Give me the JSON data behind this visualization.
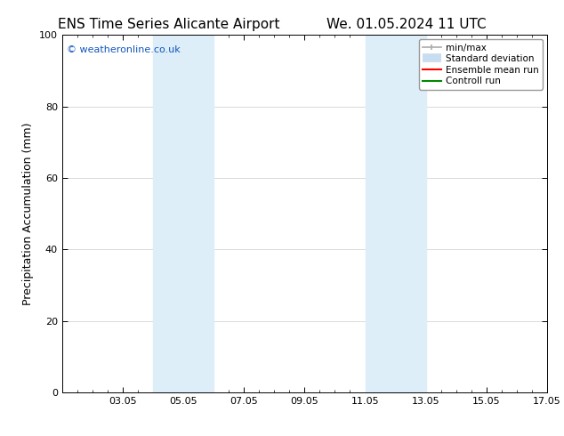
{
  "title_left": "ENS Time Series Alicante Airport",
  "title_right": "We. 01.05.2024 11 UTC",
  "ylabel": "Precipitation Accumulation (mm)",
  "ylim": [
    0,
    100
  ],
  "xlim": [
    1.05,
    17.05
  ],
  "xticks": [
    3.05,
    5.05,
    7.05,
    9.05,
    11.05,
    13.05,
    15.05,
    17.05
  ],
  "xtick_labels": [
    "03.05",
    "05.05",
    "07.05",
    "09.05",
    "11.05",
    "13.05",
    "15.05",
    "17.05"
  ],
  "yticks": [
    0,
    20,
    40,
    60,
    80,
    100
  ],
  "ytick_labels": [
    "0",
    "20",
    "40",
    "60",
    "80",
    "100"
  ],
  "shade_regions": [
    {
      "xmin": 4.05,
      "xmax": 6.05,
      "color": "#ddeef8"
    },
    {
      "xmin": 11.05,
      "xmax": 13.05,
      "color": "#ddeef8"
    }
  ],
  "watermark_text": "© weatheronline.co.uk",
  "watermark_color": "#1155bb",
  "legend_items": [
    {
      "label": "min/max",
      "color": "#aaaaaa",
      "lw": 1.2,
      "style": "line_with_caps"
    },
    {
      "label": "Standard deviation",
      "color": "#c8ddf0",
      "lw": 7,
      "style": "thick"
    },
    {
      "label": "Ensemble mean run",
      "color": "#ff0000",
      "lw": 1.5,
      "style": "solid"
    },
    {
      "label": "Controll run",
      "color": "#008800",
      "lw": 1.5,
      "style": "solid"
    }
  ],
  "bg_color": "#ffffff",
  "grid_color": "#cccccc",
  "title_fontsize": 11,
  "tick_fontsize": 8,
  "label_fontsize": 9,
  "watermark_fontsize": 8,
  "legend_fontsize": 7.5
}
